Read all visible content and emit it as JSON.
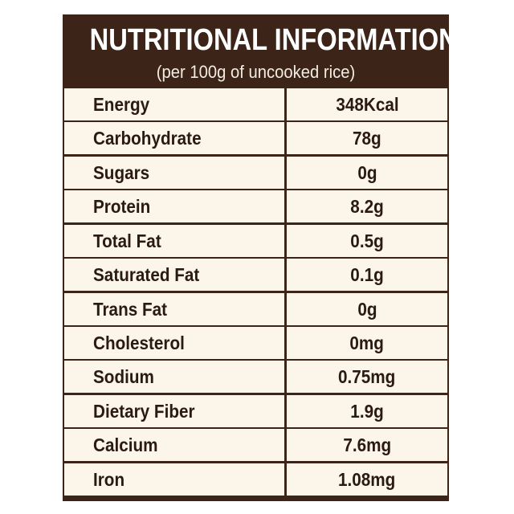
{
  "header": {
    "title": "NUTRITIONAL INFORMATION",
    "subtitle": "(per 100g of uncooked rice)"
  },
  "nutrients": [
    {
      "name": "Energy",
      "value": "348Kcal"
    },
    {
      "name": "Carbohydrate",
      "value": "78g"
    },
    {
      "name": "Sugars",
      "value": "0g"
    },
    {
      "name": "Protein",
      "value": "8.2g"
    },
    {
      "name": "Total Fat",
      "value": "0.5g"
    },
    {
      "name": "Saturated Fat",
      "value": "0.1g"
    },
    {
      "name": "Trans Fat",
      "value": "0g"
    },
    {
      "name": "Cholesterol",
      "value": "0mg"
    },
    {
      "name": "Sodium",
      "value": "0.75mg"
    },
    {
      "name": "Dietary Fiber",
      "value": "1.9g"
    },
    {
      "name": "Calcium",
      "value": "7.6mg"
    },
    {
      "name": "Iron",
      "value": "1.08mg"
    }
  ],
  "colors": {
    "header_background": "#3d2418",
    "cell_background": "#fcf5ea",
    "text_dark": "#2a1a12",
    "text_light": "#ffffff"
  }
}
